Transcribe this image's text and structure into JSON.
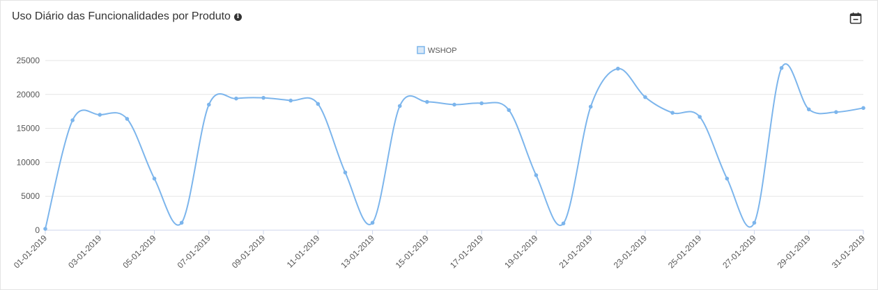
{
  "header": {
    "title": "Uso Diário das Funcionalidades por Produto",
    "info_icon": "info-icon",
    "calendar_icon": "calendar-icon"
  },
  "chart_data": {
    "type": "line",
    "legend_position": "top-center",
    "grid": true,
    "x": [
      "01-01-2019",
      "02-01-2019",
      "03-01-2019",
      "04-01-2019",
      "05-01-2019",
      "06-01-2019",
      "07-01-2019",
      "08-01-2019",
      "09-01-2019",
      "10-01-2019",
      "11-01-2019",
      "12-01-2019",
      "13-01-2019",
      "14-01-2019",
      "15-01-2019",
      "16-01-2019",
      "17-01-2019",
      "18-01-2019",
      "19-01-2019",
      "20-01-2019",
      "21-01-2019",
      "22-01-2019",
      "23-01-2019",
      "24-01-2019",
      "25-01-2019",
      "26-01-2019",
      "27-01-2019",
      "28-01-2019",
      "29-01-2019",
      "30-01-2019",
      "31-01-2019"
    ],
    "x_tick_labels": [
      "01-01-2019",
      "03-01-2019",
      "05-01-2019",
      "07-01-2019",
      "09-01-2019",
      "11-01-2019",
      "13-01-2019",
      "15-01-2019",
      "17-01-2019",
      "19-01-2019",
      "21-01-2019",
      "23-01-2019",
      "25-01-2019",
      "27-01-2019",
      "29-01-2019",
      "31-01-2019"
    ],
    "y_ticks": [
      0,
      5000,
      10000,
      15000,
      20000,
      25000
    ],
    "ylim": [
      0,
      25000
    ],
    "series": [
      {
        "name": "WSHOP",
        "color": "#7cb5ec",
        "values": [
          200,
          16200,
          17000,
          16400,
          7600,
          1100,
          18500,
          19400,
          19500,
          19100,
          18600,
          8500,
          1100,
          18300,
          18900,
          18500,
          18700,
          17700,
          8100,
          1000,
          18200,
          23800,
          19600,
          17300,
          16700,
          7600,
          1100,
          23900,
          17800,
          17400,
          18000
        ]
      }
    ]
  }
}
